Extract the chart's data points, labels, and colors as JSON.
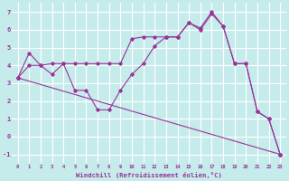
{
  "xlabel": "Windchill (Refroidissement éolien,°C)",
  "background_color": "#c5eceb",
  "grid_color": "#ffffff",
  "line_color": "#993399",
  "xlim": [
    -0.5,
    23.5
  ],
  "ylim": [
    -1.5,
    7.5
  ],
  "xticks": [
    0,
    1,
    2,
    3,
    4,
    5,
    6,
    7,
    8,
    9,
    10,
    11,
    12,
    13,
    14,
    15,
    16,
    17,
    18,
    19,
    20,
    21,
    22,
    23
  ],
  "yticks": [
    -1,
    0,
    1,
    2,
    3,
    4,
    5,
    6,
    7
  ],
  "series1_x": [
    0,
    1,
    2,
    3,
    4,
    5,
    6,
    7,
    8,
    9,
    10,
    11,
    12,
    13,
    14,
    15,
    16,
    17,
    18,
    19,
    20,
    21,
    22,
    23
  ],
  "series1_y": [
    3.3,
    4.7,
    4.0,
    3.5,
    4.1,
    2.6,
    2.6,
    1.5,
    1.5,
    2.6,
    3.5,
    4.1,
    5.1,
    5.6,
    5.6,
    6.4,
    6.1,
    7.0,
    6.2,
    4.1,
    4.1,
    1.4,
    1.0,
    -1.0
  ],
  "series2_x": [
    0,
    23
  ],
  "series2_y": [
    3.3,
    -1.0
  ],
  "series3_x": [
    0,
    1,
    2,
    3,
    4,
    5,
    6,
    7,
    8,
    9,
    10,
    11,
    12,
    13,
    14,
    15,
    16,
    17,
    18,
    19,
    20,
    21,
    22,
    23
  ],
  "series3_y": [
    3.3,
    4.0,
    4.0,
    4.1,
    4.1,
    4.1,
    4.1,
    4.1,
    4.1,
    4.1,
    5.5,
    5.6,
    5.6,
    5.6,
    5.6,
    6.4,
    6.0,
    6.9,
    6.2,
    4.1,
    4.1,
    1.4,
    1.0,
    -1.0
  ]
}
